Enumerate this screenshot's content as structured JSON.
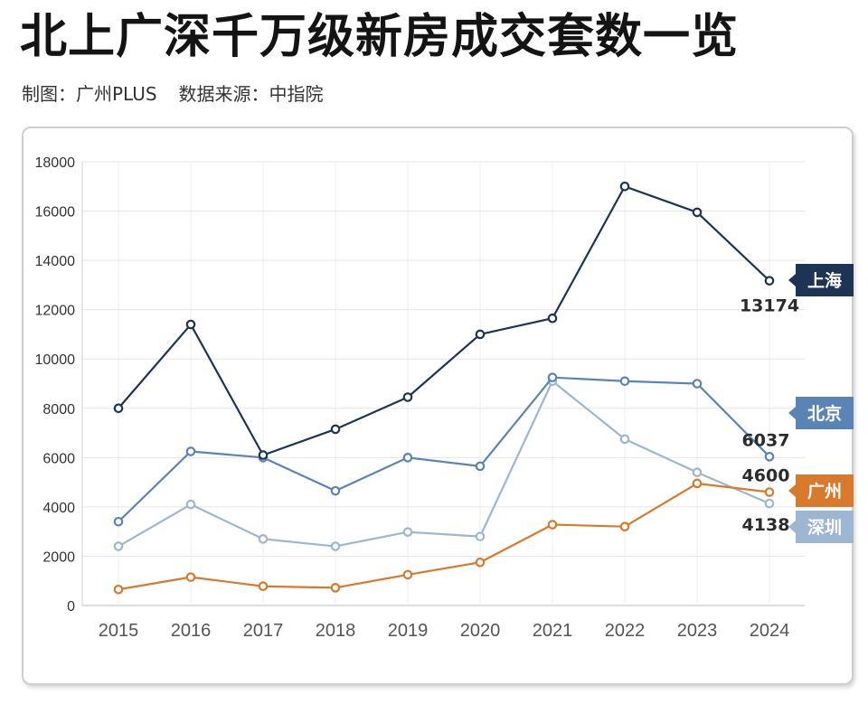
{
  "header": {
    "title": "北上广深千万级新房成交套数一览",
    "credit": "制图：广州PLUS",
    "source": "数据来源：中指院"
  },
  "chart_data": {
    "type": "line",
    "title": "北上广深千万级新房成交套数一览",
    "xlabel": "",
    "ylabel": "",
    "x": [
      "2015",
      "2016",
      "2017",
      "2018",
      "2019",
      "2020",
      "2021",
      "2022",
      "2023",
      "2024"
    ],
    "ylim": [
      0,
      18000
    ],
    "yticks": [
      0,
      2000,
      4000,
      6000,
      8000,
      10000,
      12000,
      14000,
      16000,
      18000
    ],
    "grid": true,
    "series": [
      {
        "name": "上海",
        "color": "#1e3455",
        "values": [
          8000,
          11400,
          6100,
          7150,
          8450,
          11000,
          11650,
          17000,
          15950,
          13174
        ],
        "end_label": "13174"
      },
      {
        "name": "北京",
        "color": "#5b84b6",
        "values": [
          3400,
          6250,
          6000,
          4650,
          6000,
          5650,
          9250,
          9100,
          9000,
          6037
        ],
        "end_label": "6037"
      },
      {
        "name": "广州",
        "color": "#d9792b",
        "values": [
          650,
          1150,
          780,
          720,
          1250,
          1750,
          3280,
          3200,
          4950,
          4600
        ],
        "end_label": "4600"
      },
      {
        "name": "深圳",
        "color": "#9db6d2",
        "values": [
          2400,
          4100,
          2700,
          2400,
          2980,
          2800,
          9100,
          6750,
          5400,
          4138
        ],
        "end_label": "4138"
      }
    ]
  }
}
